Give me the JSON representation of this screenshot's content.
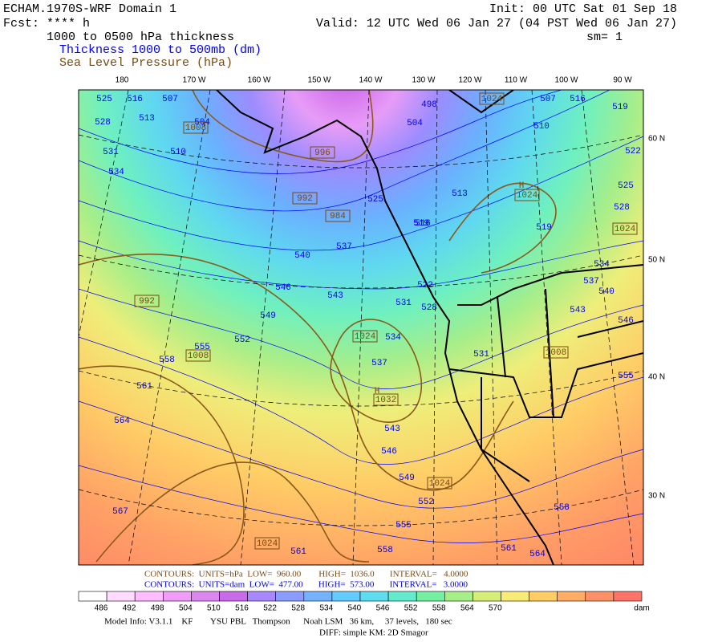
{
  "header": {
    "model": "ECHAM.1970S-WRF Domain 1",
    "fcst": "Fcst: **** h",
    "field": "1000 to 0500 hPa thickness",
    "field1": "Thickness 1000 to 500mb (dm)",
    "field2": "Sea Level Pressure (hPa)",
    "init": "Init: 00 UTC Sat 01 Sep 18",
    "valid": "Valid: 12 UTC Wed 06 Jan 27 (04 PST Wed 06 Jan 27)",
    "sm": "sm= 1"
  },
  "map": {
    "longitudes": [
      "180",
      "170 W",
      "160 W",
      "150 W",
      "140 W",
      "130 W",
      "120 W",
      "110 W",
      "100 W",
      "90 W"
    ],
    "latitudes": [
      "60 N",
      "50 N",
      "40 N",
      "30 N"
    ],
    "thickness_labels": [
      "525",
      "516",
      "507",
      "504",
      "513",
      "528",
      "531",
      "534",
      "510",
      "498",
      "504",
      "513",
      "516",
      "519",
      "510",
      "507",
      "516",
      "519",
      "522",
      "525",
      "528",
      "534",
      "537",
      "540",
      "543",
      "546",
      "540",
      "537",
      "546",
      "543",
      "549",
      "552",
      "555",
      "558",
      "561",
      "564",
      "567",
      "531",
      "534",
      "537",
      "528",
      "531",
      "543",
      "546",
      "549",
      "552",
      "555",
      "558",
      "561",
      "561",
      "564",
      "558",
      "555",
      "525",
      "519",
      "522"
    ],
    "pressure_labels": [
      "1008",
      "996",
      "992",
      "984",
      "1024",
      "1024",
      "1024",
      "992",
      "1008",
      "1024",
      "1032",
      "1024",
      "1024",
      "1008"
    ],
    "highs": [
      "H",
      "H"
    ]
  },
  "footer": {
    "contours_slp": "CONTOURS:  UNITS=hPa  LOW=  960.00        HIGH=  1036.0       INTERVAL=   4.0000",
    "contours_thk": "CONTOURS:  UNITS=dam  LOW=  477.00       HIGH=  573.00       INTERVAL=   3.0000",
    "colorbar_labels": [
      "486",
      "492",
      "498",
      "504",
      "510",
      "516",
      "522",
      "528",
      "534",
      "540",
      "546",
      "552",
      "558",
      "564",
      "570"
    ],
    "colorbar_unit": "dam",
    "model_info": "Model Info: V3.1.1    KF        YSU PBL   Thompson      Noah LSM   36 km,     37 levels,   180 sec",
    "diff": "DIFF: simple KM: 2D Smagor"
  }
}
